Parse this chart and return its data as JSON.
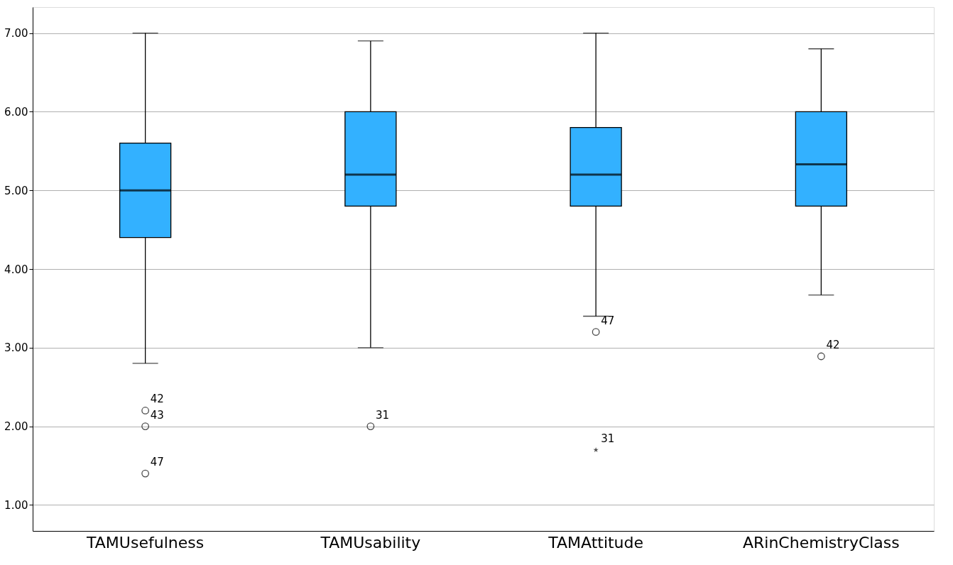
{
  "chart_data": {
    "type": "box",
    "categories": [
      "TAMUsefulness",
      "TAMUsability",
      "TAMAttitude",
      "ARinChemistryClass"
    ],
    "boxes": [
      {
        "low": 2.8,
        "q1": 4.4,
        "median": 5.0,
        "q3": 5.6,
        "high": 7.0
      },
      {
        "low": 3.0,
        "q1": 4.8,
        "median": 5.2,
        "q3": 6.0,
        "high": 6.9
      },
      {
        "low": 3.4,
        "q1": 4.8,
        "median": 5.2,
        "q3": 5.8,
        "high": 7.0
      },
      {
        "low": 3.67,
        "q1": 4.8,
        "median": 5.33,
        "q3": 6.0,
        "high": 6.8
      }
    ],
    "series": [
      {
        "type": "scatter",
        "marker": "circle",
        "color": "#000000",
        "x": [
          "TAMUsefulness",
          "TAMUsefulness",
          "TAMUsefulness",
          "TAMUsability",
          "TAMAttitude",
          "ARinChemistryClass"
        ],
        "values": [
          2.2,
          2.0,
          1.4,
          2.0,
          3.2,
          2.89
        ]
      },
      {
        "type": "scatter",
        "marker": "star",
        "color": "#000000",
        "x": [
          "TAMAttitude"
        ],
        "values": [
          1.7
        ]
      }
    ],
    "color": "#33b1ff",
    "ylim": [
      0.67,
      7.33
    ],
    "yticks": [
      {
        "value": 1,
        "label": "1.00"
      },
      {
        "value": 2,
        "label": "2.00"
      },
      {
        "value": 3,
        "label": "3.00"
      },
      {
        "value": 4,
        "label": "4.00"
      },
      {
        "value": 5,
        "label": "5.00"
      },
      {
        "value": 6,
        "label": "6.00"
      },
      {
        "value": 7,
        "label": "7.00"
      }
    ],
    "grid": "y",
    "annotations": [
      {
        "text": "42",
        "x": "TAMUsefulness",
        "y": 2.2
      },
      {
        "text": "43",
        "x": "TAMUsefulness",
        "y": 2.0
      },
      {
        "text": "47",
        "x": "TAMUsefulness",
        "y": 1.4
      },
      {
        "text": "31",
        "x": "TAMUsability",
        "y": 2.0
      },
      {
        "text": "47",
        "x": "TAMAttitude",
        "y": 3.2
      },
      {
        "text": "31",
        "x": "TAMAttitude",
        "y": 1.7
      },
      {
        "text": "42",
        "x": "ARinChemistryClass",
        "y": 2.89
      }
    ]
  }
}
